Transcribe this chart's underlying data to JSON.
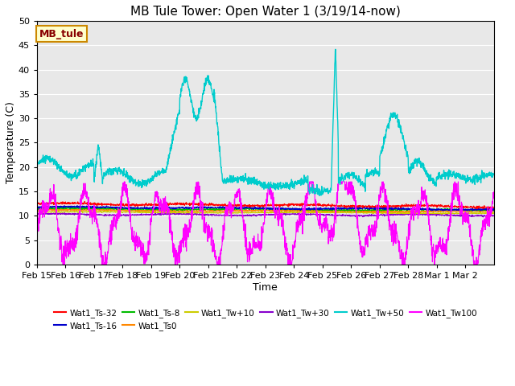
{
  "title": "MB Tule Tower: Open Water 1 (3/19/14-now)",
  "xlabel": "Time",
  "ylabel": "Temperature (C)",
  "ylim": [
    0,
    50
  ],
  "xlim": [
    0,
    16
  ],
  "xtick_labels": [
    "Feb 15",
    "Feb 16",
    "Feb 17",
    "Feb 18",
    "Feb 19",
    "Feb 20",
    "Feb 21",
    "Feb 22",
    "Feb 23",
    "Feb 24",
    "Feb 25",
    "Feb 26",
    "Feb 27",
    "Feb 28",
    "Mar 1",
    "Mar 2"
  ],
  "legend_entries": [
    {
      "label": "Wat1_Ts-32",
      "color": "#ff0000"
    },
    {
      "label": "Wat1_Ts-16",
      "color": "#0000cc"
    },
    {
      "label": "Wat1_Ts-8",
      "color": "#00bb00"
    },
    {
      "label": "Wat1_Ts0",
      "color": "#ff8800"
    },
    {
      "label": "Wat1_Tw+10",
      "color": "#cccc00"
    },
    {
      "label": "Wat1_Tw+30",
      "color": "#8800cc"
    },
    {
      "label": "Wat1_Tw+50",
      "color": "#00cccc"
    },
    {
      "label": "Wat1_Tw100",
      "color": "#ff00ff"
    }
  ],
  "inset_label": "MB_tule",
  "inset_bg": "#ffffcc",
  "inset_border": "#cc8800",
  "inset_text_color": "#880000",
  "background_color": "#e8e8e8",
  "figsize": [
    6.4,
    4.8
  ],
  "dpi": 100
}
